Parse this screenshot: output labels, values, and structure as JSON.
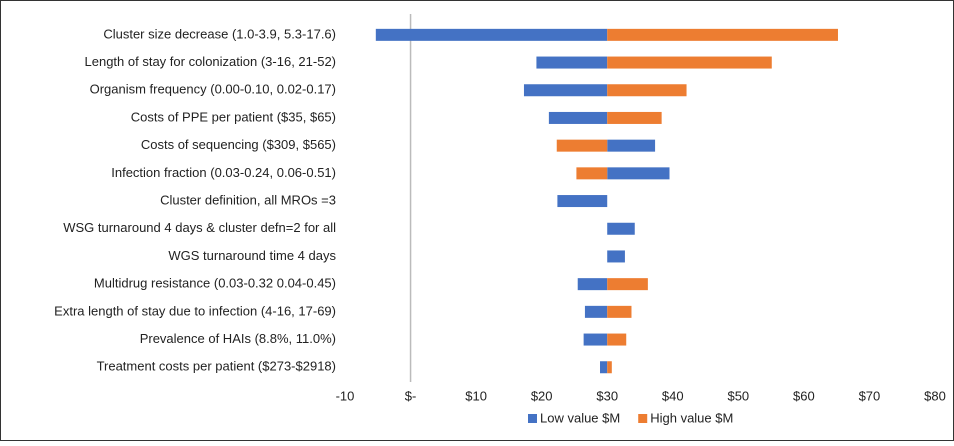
{
  "chart_data": {
    "type": "tornado",
    "categories": [
      "Cluster size decrease (1.0-3.9, 5.3-17.6)",
      "Length of stay for colonization (3-16, 21-52)",
      "Organism frequency (0.00-0.10, 0.02-0.17)",
      "Costs of PPE per patient ($35, $65)",
      "Costs of sequencing ($309, $565)",
      "Infection fraction (0.03-0.24, 0.06-0.51)",
      "Cluster definition, all MROs =3",
      "WSG turnaround 4 days & cluster defn=2 for all",
      "WGS turnaround time 4 days",
      "Multidrug resistance (0.03-0.32 0.04-0.45)",
      "Extra length of stay due to infection (4-16, 17-69)",
      "Prevalence of HAIs (8.8%, 11.0%)",
      "Treatment costs per patient ($273-$2918)"
    ],
    "base": 30,
    "series": [
      {
        "name": "Low value $M",
        "color": "#4472c4",
        "values": [
          -5.3,
          19.2,
          17.3,
          21.1,
          37.3,
          39.5,
          22.4,
          34.2,
          32.7,
          25.5,
          26.6,
          26.4,
          28.9
        ]
      },
      {
        "name": "High value $M",
        "color": "#ed7d31",
        "values": [
          65.2,
          55.1,
          42.1,
          38.3,
          22.3,
          25.3,
          null,
          null,
          null,
          36.2,
          33.7,
          32.9,
          30.7
        ]
      }
    ],
    "xlim": [
      -10,
      80
    ],
    "xticks": [
      -10,
      {
        "value": 0,
        "label": "$-"
      },
      {
        "value": 10,
        "label": "$10"
      },
      {
        "value": 20,
        "label": "$20"
      },
      {
        "value": 30,
        "label": "$30"
      },
      {
        "value": 40,
        "label": "$40"
      },
      {
        "value": 50,
        "label": "$50"
      },
      {
        "value": 60,
        "label": "$60"
      },
      {
        "value": 70,
        "label": "$70"
      },
      {
        "value": 80,
        "label": "$80"
      }
    ],
    "zero_line": true
  }
}
